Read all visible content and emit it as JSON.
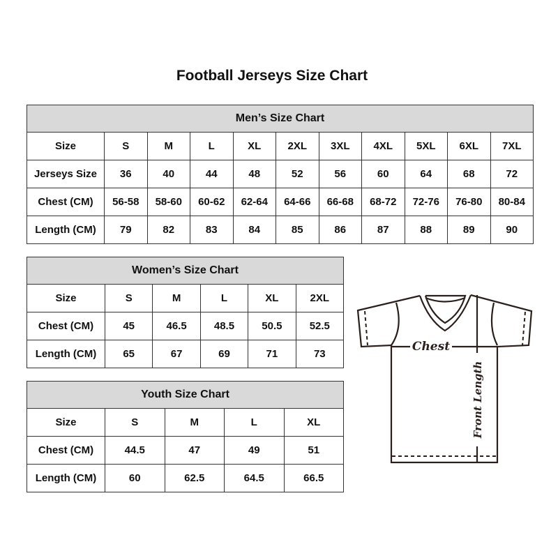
{
  "title": "Football Jerseys Size Chart",
  "men": {
    "caption": "Men’s Size Chart",
    "rows": [
      [
        "Size",
        "S",
        "M",
        "L",
        "XL",
        "2XL",
        "3XL",
        "4XL",
        "5XL",
        "6XL",
        "7XL"
      ],
      [
        "Jerseys Size",
        "36",
        "40",
        "44",
        "48",
        "52",
        "56",
        "60",
        "64",
        "68",
        "72"
      ],
      [
        "Chest (CM)",
        "56-58",
        "58-60",
        "60-62",
        "62-64",
        "64-66",
        "66-68",
        "68-72",
        "72-76",
        "76-80",
        "80-84"
      ],
      [
        "Length (CM)",
        "79",
        "82",
        "83",
        "84",
        "85",
        "86",
        "87",
        "88",
        "89",
        "90"
      ]
    ]
  },
  "women": {
    "caption": "Women’s Size Chart",
    "rows": [
      [
        "Size",
        "S",
        "M",
        "L",
        "XL",
        "2XL"
      ],
      [
        "Chest (CM)",
        "45",
        "46.5",
        "48.5",
        "50.5",
        "52.5"
      ],
      [
        "Length (CM)",
        "65",
        "67",
        "69",
        "71",
        "73"
      ]
    ]
  },
  "youth": {
    "caption": "Youth Size Chart",
    "rows": [
      [
        "Size",
        "S",
        "M",
        "L",
        "XL"
      ],
      [
        "Chest (CM)",
        "44.5",
        "47",
        "49",
        "51"
      ],
      [
        "Length (CM)",
        "60",
        "62.5",
        "64.5",
        "66.5"
      ]
    ]
  },
  "diagram": {
    "chest_label": "Chest",
    "length_label": "Front Length",
    "header_bg": "#d9d9d9"
  }
}
